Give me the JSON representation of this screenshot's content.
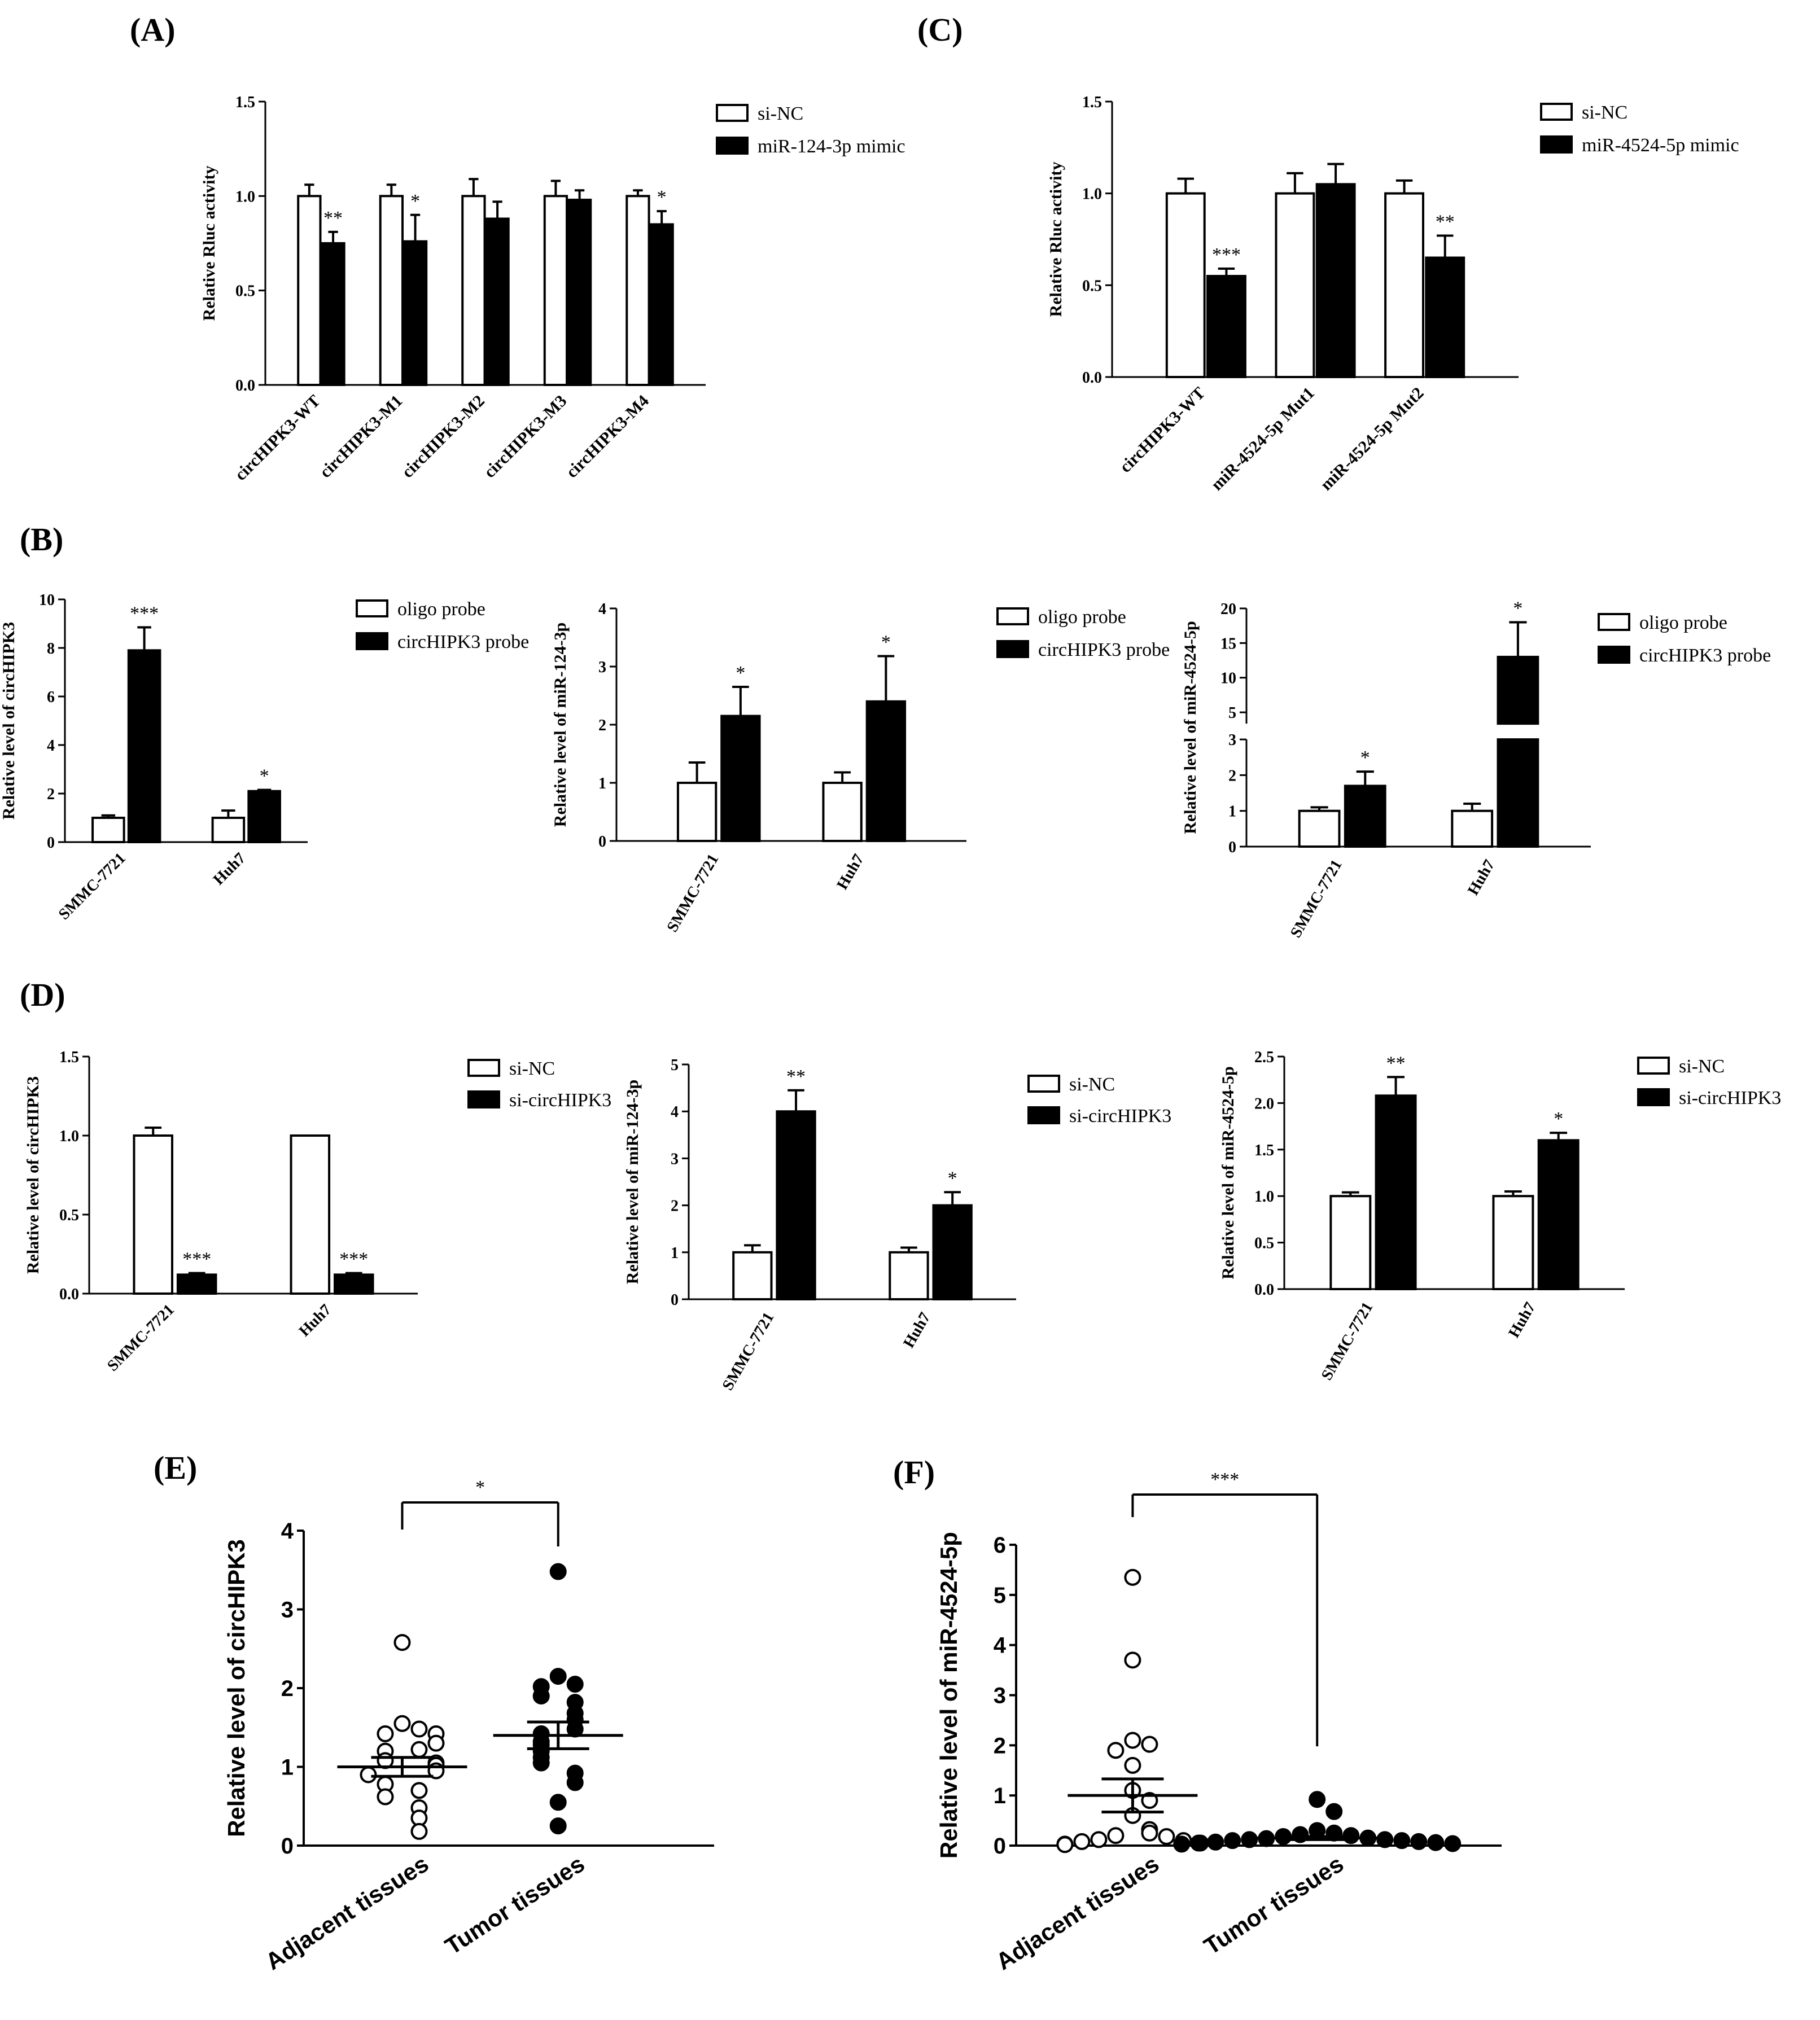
{
  "chart_data": [
    {
      "id": "A",
      "panel_label": "(A)",
      "type": "bar",
      "categories": [
        "circHIPK3-WT",
        "circHIPK3-M1",
        "circHIPK3-M2",
        "circHIPK3-M3",
        "circHIPK3-M4"
      ],
      "series": [
        {
          "name": "si-NC",
          "fill": "#ffffff",
          "values": [
            1.0,
            1.0,
            1.0,
            1.0,
            1.0
          ],
          "errors": [
            0.06,
            0.06,
            0.09,
            0.08,
            0.03
          ]
        },
        {
          "name": "miR-124-3p mimic",
          "fill": "#000000",
          "values": [
            0.75,
            0.76,
            0.88,
            0.98,
            0.85
          ],
          "errors": [
            0.06,
            0.14,
            0.09,
            0.05,
            0.07
          ]
        }
      ],
      "significance": [
        "**",
        "*",
        "",
        "",
        "*"
      ],
      "ylabel": "Relative Rluc activity",
      "ylim": [
        0,
        1.5
      ],
      "yticks": [
        0.0,
        0.5,
        1.0,
        1.5
      ],
      "ytick_labels": [
        "0.0",
        "0.5",
        "1.0",
        "1.5"
      ]
    },
    {
      "id": "C",
      "panel_label": "(C)",
      "type": "bar",
      "categories": [
        "circHIPK3-WT",
        "miR-4524-5p Mut1",
        "miR-4524-5p Mut2"
      ],
      "series": [
        {
          "name": "si-NC",
          "fill": "#ffffff",
          "values": [
            1.0,
            1.0,
            1.0
          ],
          "errors": [
            0.08,
            0.11,
            0.07
          ]
        },
        {
          "name": "miR-4524-5p mimic",
          "fill": "#000000",
          "values": [
            0.55,
            1.05,
            0.65
          ],
          "errors": [
            0.04,
            0.11,
            0.12
          ]
        }
      ],
      "significance": [
        "***",
        "",
        "**"
      ],
      "ylabel": "Relative Rluc activity",
      "ylim": [
        0,
        1.5
      ],
      "yticks": [
        0.0,
        0.5,
        1.0,
        1.5
      ],
      "ytick_labels": [
        "0.0",
        "0.5",
        "1.0",
        "1.5"
      ]
    },
    {
      "id": "B1",
      "panel_label": "(B)",
      "type": "bar",
      "categories": [
        "SMMC-7721",
        "Huh7"
      ],
      "series": [
        {
          "name": "oligo probe",
          "fill": "#ffffff",
          "values": [
            1.0,
            1.0
          ],
          "errors": [
            0.1,
            0.3
          ]
        },
        {
          "name": "circHIPK3 probe",
          "fill": "#000000",
          "values": [
            7.9,
            2.1
          ],
          "errors": [
            0.95,
            0.05
          ]
        }
      ],
      "significance": [
        "***",
        "*"
      ],
      "ylabel": "Relative level of circHIPK3",
      "ylim": [
        0,
        10
      ],
      "yticks": [
        0,
        2,
        4,
        6,
        8,
        10
      ],
      "ytick_labels": [
        "0",
        "2",
        "4",
        "6",
        "8",
        "10"
      ]
    },
    {
      "id": "B2",
      "type": "bar",
      "categories": [
        "SMMC-7721",
        "Huh7"
      ],
      "series": [
        {
          "name": "oligo probe",
          "fill": "#ffffff",
          "values": [
            1.0,
            1.0
          ],
          "errors": [
            0.35,
            0.18
          ]
        },
        {
          "name": "circHIPK3 probe",
          "fill": "#000000",
          "values": [
            2.15,
            2.4
          ],
          "errors": [
            0.5,
            0.78
          ]
        }
      ],
      "significance": [
        "*",
        "*"
      ],
      "ylabel": "Relative level of miR-124-3p",
      "ylim": [
        0,
        4
      ],
      "yticks": [
        0,
        1,
        2,
        3,
        4
      ],
      "ytick_labels": [
        "0",
        "1",
        "2",
        "3",
        "4"
      ]
    },
    {
      "id": "B3",
      "type": "bar",
      "categories": [
        "SMMC-7721",
        "Huh7"
      ],
      "series": [
        {
          "name": "oligo probe",
          "fill": "#ffffff",
          "values": [
            1.0,
            1.0
          ],
          "errors": [
            0.1,
            0.2
          ]
        },
        {
          "name": "circHIPK3 probe",
          "fill": "#000000",
          "values": [
            1.7,
            13.0
          ],
          "errors": [
            0.4,
            5.0
          ]
        }
      ],
      "significance": [
        "*",
        "*"
      ],
      "ylabel": "Relative level of miR-4524-5p",
      "ylim": [
        0,
        20
      ],
      "axis_break": [
        3,
        3.5
      ],
      "yticks": [
        0,
        1,
        2,
        3,
        5,
        10,
        15,
        20
      ],
      "ytick_labels": [
        "0",
        "1",
        "2",
        "3",
        "5",
        "10",
        "15",
        "20"
      ]
    },
    {
      "id": "D1",
      "panel_label": "(D)",
      "type": "bar",
      "categories": [
        "SMMC-7721",
        "Huh7"
      ],
      "series": [
        {
          "name": "si-NC",
          "fill": "#ffffff",
          "values": [
            1.0,
            1.0
          ],
          "errors": [
            0.05,
            0.0
          ]
        },
        {
          "name": "si-circHIPK3",
          "fill": "#000000",
          "values": [
            0.12,
            0.12
          ],
          "errors": [
            0.01,
            0.01
          ]
        }
      ],
      "significance": [
        "***",
        "***"
      ],
      "ylabel": "Relative level of circHIPK3",
      "ylim": [
        0,
        1.5
      ],
      "yticks": [
        0.0,
        0.5,
        1.0,
        1.5
      ],
      "ytick_labels": [
        "0.0",
        "0.5",
        "1.0",
        "1.5"
      ]
    },
    {
      "id": "D2",
      "type": "bar",
      "categories": [
        "SMMC-7721",
        "Huh7"
      ],
      "series": [
        {
          "name": "si-NC",
          "fill": "#ffffff",
          "values": [
            1.0,
            1.0
          ],
          "errors": [
            0.15,
            0.1
          ]
        },
        {
          "name": "si-circHIPK3",
          "fill": "#000000",
          "values": [
            4.0,
            2.0
          ],
          "errors": [
            0.45,
            0.28
          ]
        }
      ],
      "significance": [
        "**",
        "*"
      ],
      "ylabel": "Relative level of miR-124-3p",
      "ylim": [
        0,
        5
      ],
      "yticks": [
        0,
        1,
        2,
        3,
        4,
        5
      ],
      "ytick_labels": [
        "0",
        "1",
        "2",
        "3",
        "4",
        "5"
      ]
    },
    {
      "id": "D3",
      "type": "bar",
      "categories": [
        "SMMC-7721",
        "Huh7"
      ],
      "series": [
        {
          "name": "si-NC",
          "fill": "#ffffff",
          "values": [
            1.0,
            1.0
          ],
          "errors": [
            0.04,
            0.05
          ]
        },
        {
          "name": "si-circHIPK3",
          "fill": "#000000",
          "values": [
            2.08,
            1.6
          ],
          "errors": [
            0.2,
            0.08
          ]
        }
      ],
      "significance": [
        "**",
        "*"
      ],
      "ylabel": "Relative level of miR-4524-5p",
      "ylim": [
        0,
        2.5
      ],
      "yticks": [
        0.0,
        0.5,
        1.0,
        1.5,
        2.0,
        2.5
      ],
      "ytick_labels": [
        "0.0",
        "0.5",
        "1.0",
        "1.5",
        "2.0",
        "2.5"
      ]
    },
    {
      "id": "E",
      "panel_label": "(E)",
      "type": "scatter",
      "categories": [
        "Adjacent tissues",
        "Tumor tissues"
      ],
      "groups": [
        {
          "name": "Adjacent tissues",
          "fill": "#ffffff",
          "values": [
            2.58,
            1.55,
            1.48,
            1.42,
            1.42,
            1.3,
            1.22,
            1.2,
            1.08,
            1.05,
            1.02,
            0.95,
            0.9,
            0.78,
            0.7,
            0.62,
            0.48,
            0.35,
            0.18
          ],
          "mean": 1.0,
          "sem": 0.12
        },
        {
          "name": "Tumor tissues",
          "fill": "#000000",
          "values": [
            3.48,
            2.15,
            2.05,
            2.02,
            1.9,
            1.82,
            1.68,
            1.6,
            1.48,
            1.42,
            1.32,
            1.28,
            1.2,
            1.12,
            1.05,
            0.92,
            0.8,
            0.55,
            0.25
          ],
          "mean": 1.4,
          "sem": 0.17
        }
      ],
      "significance": "*",
      "ylabel": "Relative level of circHIPK3",
      "ylim": [
        0,
        4
      ],
      "yticks": [
        0,
        1,
        2,
        3,
        4
      ],
      "ytick_labels": [
        "0",
        "1",
        "2",
        "3",
        "4"
      ]
    },
    {
      "id": "F",
      "panel_label": "(F)",
      "type": "scatter",
      "categories": [
        "Adjacent tissues",
        "Tumor tissues"
      ],
      "groups": [
        {
          "name": "Adjacent tissues",
          "fill": "#ffffff",
          "values": [
            5.35,
            3.7,
            2.1,
            2.02,
            1.9,
            1.6,
            1.1,
            0.9,
            0.6,
            0.32,
            0.25,
            0.2,
            0.18,
            0.12,
            0.1,
            0.08,
            0.05,
            0.03,
            0.02
          ],
          "mean": 1.0,
          "sem": 0.33
        },
        {
          "name": "Tumor tissues",
          "fill": "#000000",
          "values": [
            0.92,
            0.68,
            0.3,
            0.25,
            0.22,
            0.2,
            0.18,
            0.15,
            0.14,
            0.12,
            0.12,
            0.1,
            0.1,
            0.08,
            0.07,
            0.06,
            0.05,
            0.04,
            0.03
          ],
          "mean": 0.15,
          "sem": 0.03
        }
      ],
      "significance": "***",
      "ylabel": "Relative level of miR-4524-5p",
      "ylim": [
        0,
        6
      ],
      "yticks": [
        0,
        1,
        2,
        3,
        4,
        5,
        6
      ],
      "ytick_labels": [
        "0",
        "1",
        "2",
        "3",
        "4",
        "5",
        "6"
      ]
    }
  ]
}
